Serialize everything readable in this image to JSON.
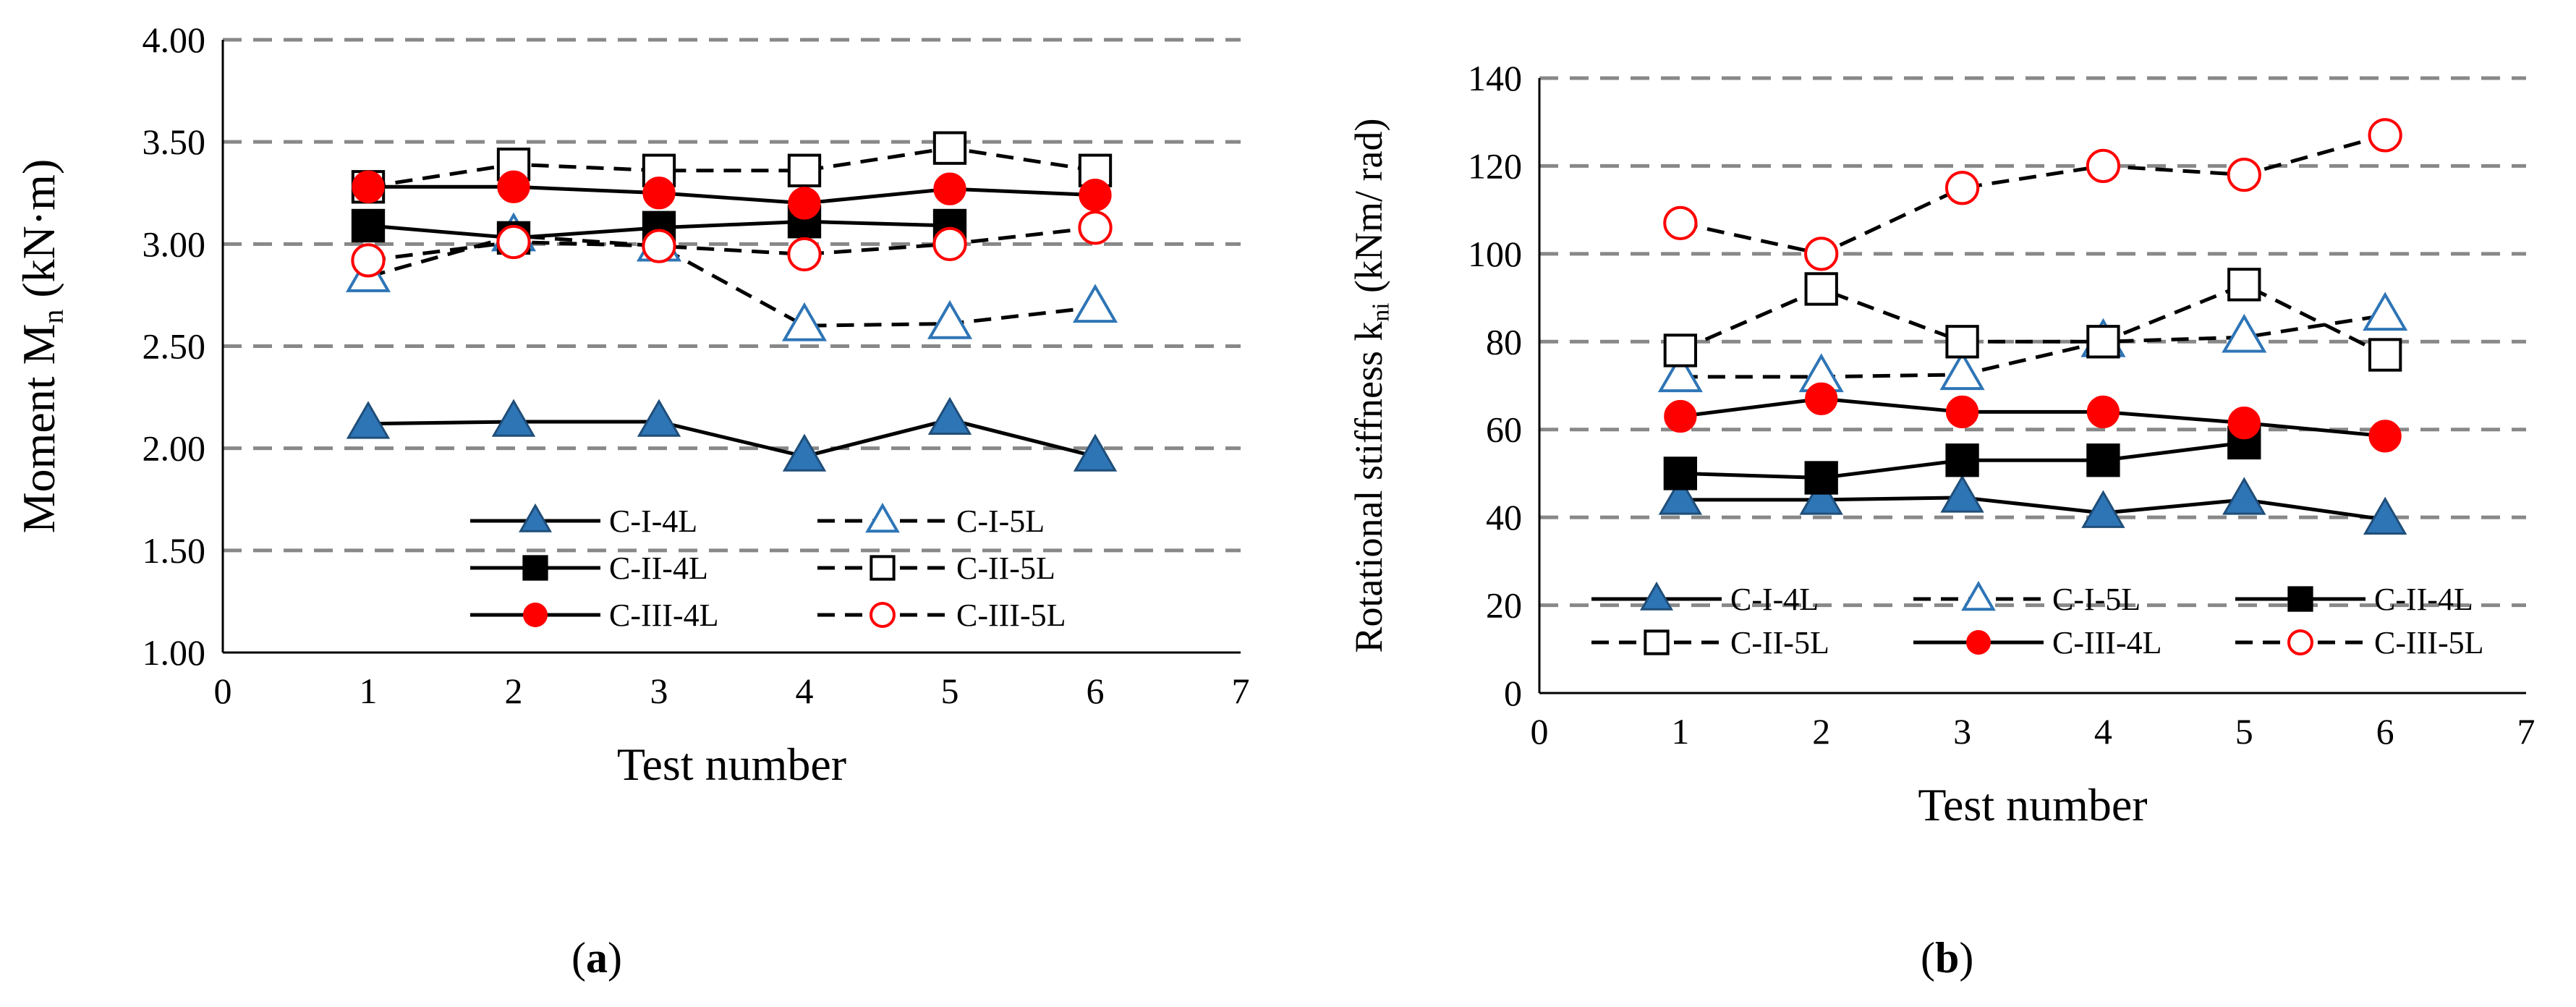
{
  "colors": {
    "blue_fill": "#2e75b6",
    "blue_edge": "#1f4e79",
    "blue_hollow_edge": "#2e75b6",
    "red": "#ff0000",
    "black": "#000000",
    "grid": "#888888"
  },
  "chart_data": [
    {
      "type": "line",
      "panel_label": "a",
      "title": "",
      "xlabel": "Test number",
      "ylabel_main": "Moment  M",
      "ylabel_sub": "n",
      "ylabel_unit": " (kN·m)",
      "xlim": [
        0,
        7
      ],
      "ylim": [
        1.0,
        4.0
      ],
      "xticks": [
        0,
        1,
        2,
        3,
        4,
        5,
        6,
        7
      ],
      "yticks": [
        1.0,
        1.5,
        2.0,
        2.5,
        3.0,
        3.5,
        4.0
      ],
      "ytick_labels": [
        "1.00",
        "1.50",
        "2.00",
        "2.50",
        "3.00",
        "3.50",
        "4.00"
      ],
      "xtick_labels": [
        "0",
        "1",
        "2",
        "3",
        "4",
        "5",
        "6",
        "7"
      ],
      "grid": "horizontal dashed",
      "legend_position": "bottom-right",
      "legend_columns": 2,
      "x": [
        1,
        2,
        3,
        4,
        5,
        6
      ],
      "series": [
        {
          "name": "C-I-4L",
          "line": "solid",
          "marker": "triangle-filled",
          "color": "blue",
          "values": [
            2.12,
            2.13,
            2.13,
            1.96,
            2.14,
            1.96
          ]
        },
        {
          "name": "C-I-5L",
          "line": "dashed",
          "marker": "triangle-hollow",
          "color": "blue",
          "values": [
            2.84,
            3.04,
            2.99,
            2.6,
            2.61,
            2.69
          ]
        },
        {
          "name": "C-II-4L",
          "line": "solid",
          "marker": "square-filled",
          "color": "black",
          "values": [
            3.09,
            3.03,
            3.08,
            3.11,
            3.09,
            null
          ]
        },
        {
          "name": "C-II-5L",
          "line": "dashed",
          "marker": "square-hollow",
          "color": "black",
          "values": [
            3.28,
            3.39,
            3.36,
            3.36,
            3.47,
            3.36
          ]
        },
        {
          "name": "C-III-4L",
          "line": "solid",
          "marker": "circle-filled",
          "color": "red",
          "values": [
            3.28,
            3.28,
            3.25,
            3.2,
            3.27,
            3.24
          ]
        },
        {
          "name": "C-III-5L",
          "line": "dashed",
          "marker": "circle-hollow",
          "color": "red",
          "values": [
            2.92,
            3.01,
            2.99,
            2.95,
            3.0,
            3.08
          ]
        }
      ]
    },
    {
      "type": "line",
      "panel_label": "b",
      "title": "",
      "xlabel": "Test number",
      "ylabel_main": "Rotational stiffness k",
      "ylabel_sub": "ni",
      "ylabel_unit": " (kNm/ rad)",
      "xlim": [
        0,
        7
      ],
      "ylim": [
        0,
        140
      ],
      "xticks": [
        0,
        1,
        2,
        3,
        4,
        5,
        6,
        7
      ],
      "yticks": [
        0,
        20,
        40,
        60,
        80,
        100,
        120,
        140
      ],
      "ytick_labels": [
        "0",
        "20",
        "40",
        "60",
        "80",
        "100",
        "120",
        "140"
      ],
      "xtick_labels": [
        "0",
        "1",
        "2",
        "3",
        "4",
        "5",
        "6",
        "7"
      ],
      "grid": "horizontal dashed",
      "legend_position": "bottom",
      "legend_columns": 3,
      "x": [
        1,
        2,
        3,
        4,
        5,
        6
      ],
      "series": [
        {
          "name": "C-I-4L",
          "line": "solid",
          "marker": "triangle-filled",
          "color": "blue",
          "values": [
            44,
            44,
            44.5,
            41,
            44,
            39.5
          ]
        },
        {
          "name": "C-I-5L",
          "line": "dashed",
          "marker": "triangle-hollow",
          "color": "blue",
          "values": [
            72,
            72,
            72.5,
            80,
            81,
            86
          ]
        },
        {
          "name": "C-II-4L",
          "line": "solid",
          "marker": "square-filled",
          "color": "black",
          "values": [
            50,
            49,
            53,
            53,
            57,
            null
          ]
        },
        {
          "name": "C-II-5L",
          "line": "dashed",
          "marker": "square-hollow",
          "color": "black",
          "values": [
            78,
            92,
            80,
            80,
            93,
            77
          ]
        },
        {
          "name": "C-III-4L",
          "line": "solid",
          "marker": "circle-filled",
          "color": "red",
          "values": [
            63,
            67,
            64,
            64,
            61.5,
            58.5
          ]
        },
        {
          "name": "C-III-5L",
          "line": "dashed",
          "marker": "circle-hollow",
          "color": "red",
          "values": [
            107,
            100,
            115,
            120,
            118,
            127
          ]
        }
      ]
    }
  ],
  "captions": {
    "a_open": "(",
    "a_letter": "a",
    "a_close": ")",
    "b_open": "(",
    "b_letter": "b",
    "b_close": ")"
  }
}
